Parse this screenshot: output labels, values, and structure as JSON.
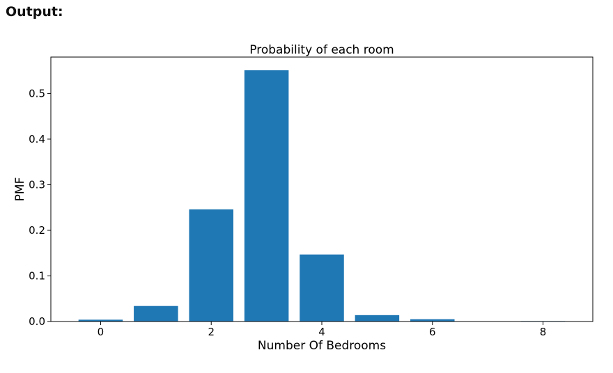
{
  "header": {
    "label": "Output:"
  },
  "chart_data": {
    "type": "bar",
    "title": "Probability of each room",
    "xlabel": "Number Of Bedrooms",
    "ylabel": "PMF",
    "categories": [
      0,
      1,
      2,
      3,
      4,
      5,
      6,
      7,
      8
    ],
    "values": [
      0.004,
      0.034,
      0.246,
      0.551,
      0.147,
      0.014,
      0.005,
      0.0005,
      0.001
    ],
    "xlim": [
      -0.9,
      8.9
    ],
    "ylim": [
      0,
      0.58
    ],
    "xticks": [
      0,
      2,
      4,
      6,
      8
    ],
    "yticks": [
      0.0,
      0.1,
      0.2,
      0.3,
      0.4,
      0.5
    ],
    "xtick_labels": [
      "0",
      "2",
      "4",
      "6",
      "8"
    ],
    "ytick_labels": [
      "0.0",
      "0.1",
      "0.2",
      "0.3",
      "0.4",
      "0.5"
    ],
    "bar_color": "#1f77b4",
    "grid": false,
    "legend": false
  }
}
